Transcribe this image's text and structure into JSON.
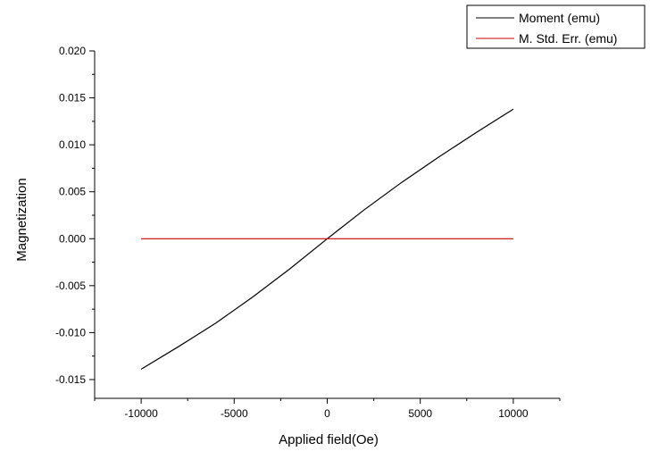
{
  "chart_data": {
    "type": "line",
    "title": "",
    "xlabel": "Applied field(Oe)",
    "ylabel": "Magnetization",
    "xlim": [
      -12500,
      12500
    ],
    "ylim": [
      -0.017,
      0.02
    ],
    "x_ticks": [
      -10000,
      -5000,
      0,
      5000,
      10000
    ],
    "x_tick_labels": [
      "-10000",
      "-5000",
      "0",
      "5000",
      "10000"
    ],
    "y_ticks": [
      -0.015,
      -0.01,
      -0.005,
      0.0,
      0.005,
      0.01,
      0.015,
      0.02
    ],
    "y_tick_labels": [
      "-0.015",
      "-0.010",
      "-0.005",
      "0.000",
      "0.005",
      "0.010",
      "0.015",
      "0.020"
    ],
    "grid": false,
    "legend_position": "top-right",
    "series": [
      {
        "name": "Moment (emu)",
        "color": "#000000",
        "x": [
          -10000,
          -8000,
          -6000,
          -4000,
          -2000,
          0,
          2000,
          4000,
          6000,
          8000,
          10000
        ],
        "y": [
          -0.0139,
          -0.0115,
          -0.009,
          -0.0062,
          -0.0032,
          0.0,
          0.0031,
          0.006,
          0.0087,
          0.0113,
          0.0138
        ]
      },
      {
        "name": "M. Std. Err. (emu)",
        "color": "#cc0000",
        "x": [
          -10000,
          10000
        ],
        "y": [
          0.0,
          0.0
        ]
      }
    ]
  }
}
